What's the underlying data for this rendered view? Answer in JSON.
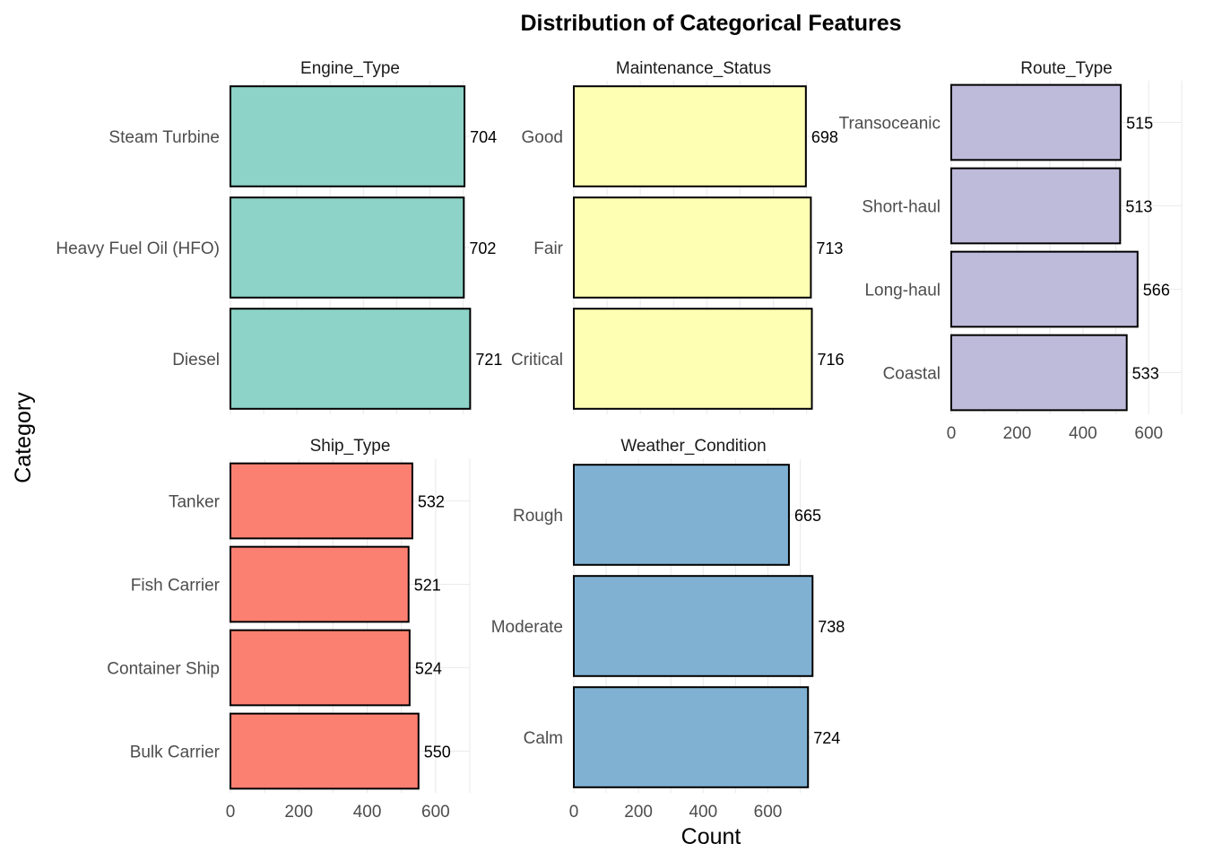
{
  "chart_data": {
    "type": "bar",
    "orientation": "horizontal",
    "title": "Distribution of Categorical Features",
    "xlabel": "Count",
    "ylabel": "Category",
    "grid": true,
    "legend": "none",
    "facets": [
      {
        "name": "Engine_Type",
        "color": "#8DD3C7",
        "categories": [
          "Steam Turbine",
          "Heavy Fuel Oil (HFO)",
          "Diesel"
        ],
        "values": [
          704,
          702,
          721
        ],
        "xlim": [
          0,
          720
        ],
        "xticks": []
      },
      {
        "name": "Maintenance_Status",
        "color": "#FFFFB3",
        "categories": [
          "Good",
          "Fair",
          "Critical"
        ],
        "values": [
          698,
          713,
          716
        ],
        "xlim": [
          0,
          720
        ],
        "xticks": []
      },
      {
        "name": "Route_Type",
        "color": "#BEBADA",
        "categories": [
          "Transoceanic",
          "Short-haul",
          "Long-haul",
          "Coastal"
        ],
        "values": [
          515,
          513,
          566,
          533
        ],
        "xlim": [
          0,
          700
        ],
        "xticks": [
          0,
          200,
          400,
          600
        ]
      },
      {
        "name": "Ship_Type",
        "color": "#FB8072",
        "categories": [
          "Tanker",
          "Fish Carrier",
          "Container Ship",
          "Bulk Carrier"
        ],
        "values": [
          532,
          521,
          524,
          550
        ],
        "xlim": [
          0,
          700
        ],
        "xticks": [
          0,
          200,
          400,
          600
        ]
      },
      {
        "name": "Weather_Condition",
        "color": "#80B1D3",
        "categories": [
          "Rough",
          "Moderate",
          "Calm"
        ],
        "values": [
          665,
          738,
          724
        ],
        "xlim": [
          0,
          740
        ],
        "xticks": [
          0,
          200,
          400,
          600
        ]
      }
    ]
  }
}
